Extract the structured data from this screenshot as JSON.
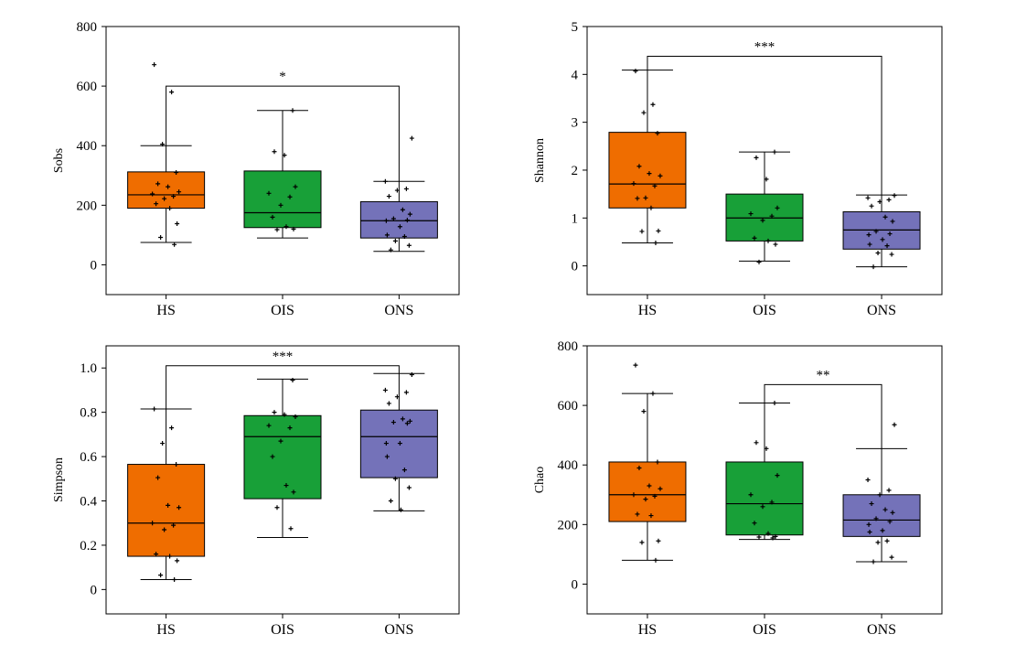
{
  "colors": {
    "HS": "#ef6d00",
    "OIS": "#18a038",
    "ONS": "#7472b9",
    "line": "#000000"
  },
  "chart_data": [
    {
      "type": "box",
      "ylabel": "Sobs",
      "categories": [
        "HS",
        "OIS",
        "ONS"
      ],
      "ylim": [
        -100,
        800
      ],
      "yticks": [
        0,
        200,
        400,
        600,
        800
      ],
      "tick_labels": [
        "0",
        "200",
        "400",
        "600",
        "800"
      ],
      "boxes": [
        {
          "name": "HS",
          "min": 75,
          "q1": 190,
          "median": 235,
          "q3": 312,
          "max": 400
        },
        {
          "name": "OIS",
          "min": 90,
          "q1": 125,
          "median": 175,
          "q3": 315,
          "max": 518
        },
        {
          "name": "ONS",
          "min": 45,
          "q1": 90,
          "median": 148,
          "q3": 212,
          "max": 280
        }
      ],
      "points": [
        [
          672,
          580,
          405,
          310,
          272,
          262,
          245,
          238,
          230,
          222,
          205,
          190,
          138,
          92,
          68
        ],
        [
          518,
          380,
          368,
          262,
          240,
          228,
          200,
          160,
          128,
          120,
          118
        ],
        [
          425,
          280,
          255,
          250,
          230,
          185,
          170,
          155,
          150,
          148,
          128,
          100,
          95,
          80,
          65,
          50
        ]
      ],
      "significance": [
        {
          "from": "HS",
          "to": "ONS",
          "label": "*",
          "y": 600
        }
      ]
    },
    {
      "type": "box",
      "ylabel": "Shannon",
      "categories": [
        "HS",
        "OIS",
        "ONS"
      ],
      "ylim": [
        -0.6,
        5
      ],
      "yticks": [
        0,
        1,
        2,
        3,
        4,
        5
      ],
      "tick_labels": [
        "0",
        "1",
        "2",
        "3",
        "4",
        "5"
      ],
      "boxes": [
        {
          "name": "HS",
          "min": 0.48,
          "q1": 1.21,
          "median": 1.71,
          "q3": 2.79,
          "max": 4.09
        },
        {
          "name": "OIS",
          "min": 0.1,
          "q1": 0.52,
          "median": 1.0,
          "q3": 1.5,
          "max": 2.38
        },
        {
          "name": "ONS",
          "min": -0.02,
          "q1": 0.35,
          "median": 0.75,
          "q3": 1.13,
          "max": 1.48
        }
      ],
      "points": [
        [
          4.07,
          3.37,
          3.2,
          2.77,
          2.08,
          1.93,
          1.88,
          1.72,
          1.67,
          1.42,
          1.41,
          1.21,
          0.73,
          0.72,
          0.48
        ],
        [
          2.38,
          2.26,
          1.81,
          1.21,
          1.09,
          1.04,
          0.95,
          0.58,
          0.52,
          0.45,
          0.08
        ],
        [
          1.47,
          1.42,
          1.38,
          1.34,
          1.25,
          1.02,
          0.93,
          0.72,
          0.67,
          0.65,
          0.55,
          0.45,
          0.42,
          0.27,
          0.24,
          -0.02
        ]
      ],
      "significance": [
        {
          "from": "HS",
          "to": "ONS",
          "label": "***",
          "y": 4.38
        }
      ]
    },
    {
      "type": "box",
      "ylabel": "Simpson",
      "categories": [
        "HS",
        "OIS",
        "ONS"
      ],
      "ylim": [
        -0.11,
        1.1
      ],
      "yticks": [
        0,
        0.2,
        0.4,
        0.6,
        0.8,
        1.0
      ],
      "tick_labels": [
        "0",
        "0.2",
        "0.4",
        "0.6",
        "0.8",
        "1.0"
      ],
      "boxes": [
        {
          "name": "HS",
          "min": 0.045,
          "q1": 0.15,
          "median": 0.3,
          "q3": 0.565,
          "max": 0.815
        },
        {
          "name": "OIS",
          "min": 0.235,
          "q1": 0.41,
          "median": 0.69,
          "q3": 0.785,
          "max": 0.95
        },
        {
          "name": "ONS",
          "min": 0.355,
          "q1": 0.505,
          "median": 0.69,
          "q3": 0.81,
          "max": 0.975
        }
      ],
      "points": [
        [
          0.815,
          0.73,
          0.66,
          0.565,
          0.505,
          0.38,
          0.37,
          0.3,
          0.29,
          0.27,
          0.16,
          0.15,
          0.13,
          0.065,
          0.045
        ],
        [
          0.945,
          0.8,
          0.79,
          0.78,
          0.74,
          0.73,
          0.67,
          0.6,
          0.47,
          0.44,
          0.37,
          0.275
        ],
        [
          0.97,
          0.9,
          0.89,
          0.87,
          0.84,
          0.77,
          0.76,
          0.755,
          0.75,
          0.66,
          0.66,
          0.6,
          0.54,
          0.5,
          0.46,
          0.4,
          0.36
        ]
      ],
      "significance": [
        {
          "from": "HS",
          "to": "ONS",
          "label": "***",
          "y": 1.01
        }
      ]
    },
    {
      "type": "box",
      "ylabel": "Chao",
      "categories": [
        "HS",
        "OIS",
        "ONS"
      ],
      "ylim": [
        -100,
        800
      ],
      "yticks": [
        0,
        200,
        400,
        600,
        800
      ],
      "tick_labels": [
        "0",
        "200",
        "400",
        "600",
        "800"
      ],
      "boxes": [
        {
          "name": "HS",
          "min": 80,
          "q1": 210,
          "median": 300,
          "q3": 410,
          "max": 640
        },
        {
          "name": "OIS",
          "min": 150,
          "q1": 165,
          "median": 270,
          "q3": 410,
          "max": 608
        },
        {
          "name": "ONS",
          "min": 75,
          "q1": 160,
          "median": 215,
          "q3": 300,
          "max": 455
        }
      ],
      "points": [
        [
          735,
          640,
          580,
          410,
          390,
          330,
          320,
          300,
          295,
          285,
          235,
          230,
          145,
          140,
          80
        ],
        [
          608,
          475,
          455,
          365,
          300,
          275,
          260,
          205,
          170,
          160,
          158,
          155
        ],
        [
          535,
          350,
          315,
          300,
          270,
          250,
          240,
          220,
          210,
          200,
          180,
          175,
          145,
          140,
          90,
          75
        ]
      ],
      "significance": [
        {
          "from": "OIS",
          "to": "ONS",
          "label": "**",
          "y": 670
        }
      ]
    }
  ]
}
